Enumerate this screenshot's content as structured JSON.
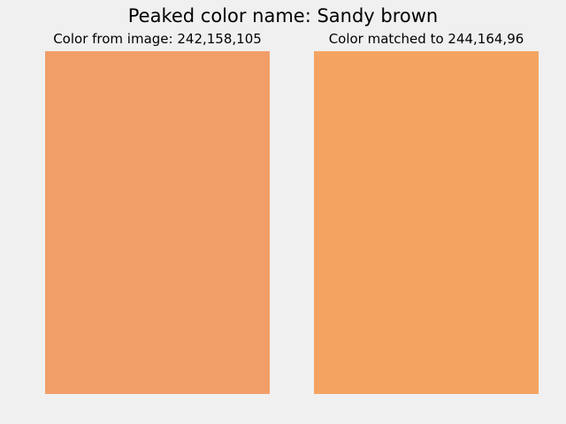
{
  "figure": {
    "title": "Peaked color name: Sandy brown",
    "background": "#f0f0f0"
  },
  "panels": [
    {
      "title": "Color from image: 242,158,105",
      "color": "#f29e69"
    },
    {
      "title": "Color matched to 244,164,96",
      "color": "#f4a460"
    }
  ]
}
